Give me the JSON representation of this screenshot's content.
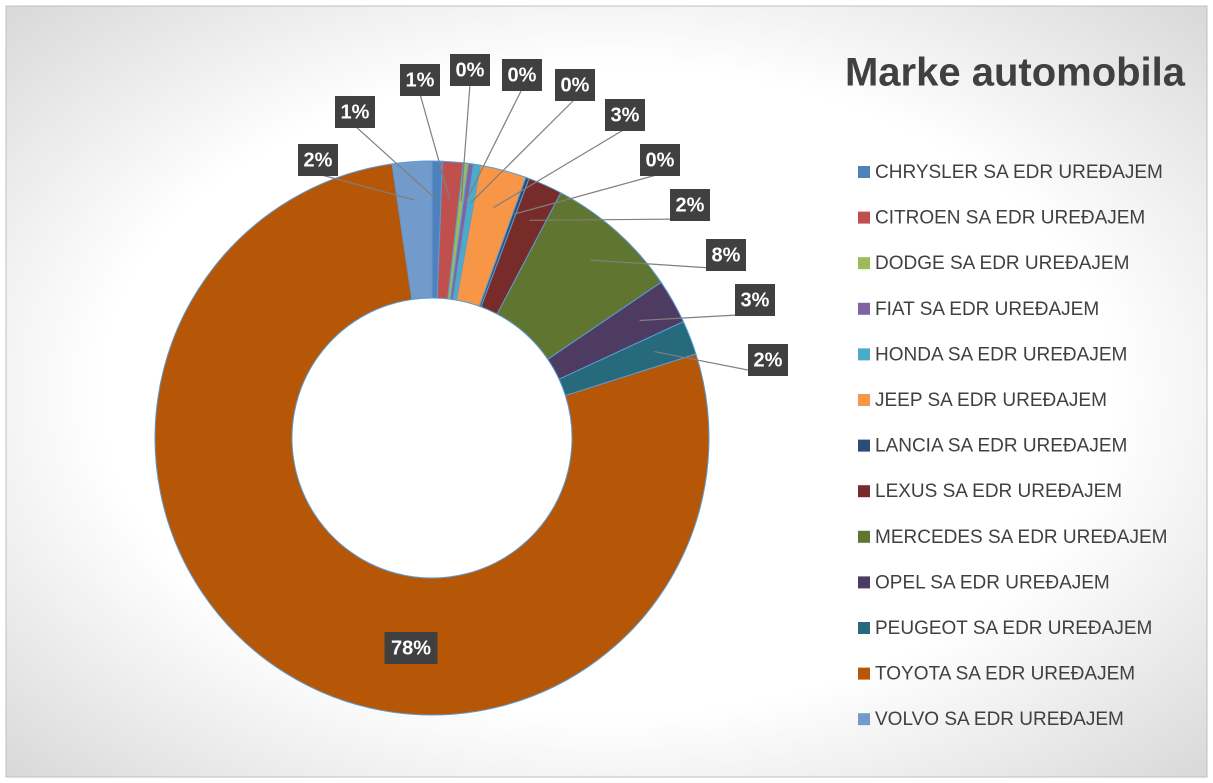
{
  "chart_data": {
    "type": "donut",
    "title": "Marke automobila",
    "categories": [
      "CHRYSLER SA EDR UREĐAJEM",
      "CITROEN SA EDR UREĐAJEM",
      "DODGE SA EDR UREĐAJEM",
      "FIAT SA EDR UREĐAJEM",
      "HONDA SA EDR UREĐAJEM",
      "JEEP SA EDR UREĐAJEM",
      "LANCIA SA EDR UREĐAJEM",
      "LEXUS SA EDR UREĐAJEM",
      "MERCEDES SA EDR UREĐAJEM",
      "OPEL SA EDR UREĐAJEM",
      "PEUGEOT SA EDR UREĐAJEM",
      "TOYOTA SA EDR UREĐAJEM",
      "VOLVO SA EDR UREĐAJEM"
    ],
    "values": [
      0.6,
      1.2,
      0.3,
      0.3,
      0.4,
      2.7,
      0.2,
      2.0,
      7.8,
      2.6,
      2.0,
      77.6,
      2.3
    ],
    "value_labels": [
      "1%",
      "1%",
      "0%",
      "0%",
      "0%",
      "3%",
      "0%",
      "2%",
      "8%",
      "3%",
      "2%",
      "78%",
      "2%"
    ],
    "colors": [
      "#4f81bd",
      "#c0504d",
      "#9bbb59",
      "#8064a2",
      "#4bacc6",
      "#f79646",
      "#2c4d75",
      "#772c2a",
      "#5f7530",
      "#4d3b62",
      "#276a7c",
      "#b65708",
      "#729aca"
    ],
    "legend": "right"
  }
}
